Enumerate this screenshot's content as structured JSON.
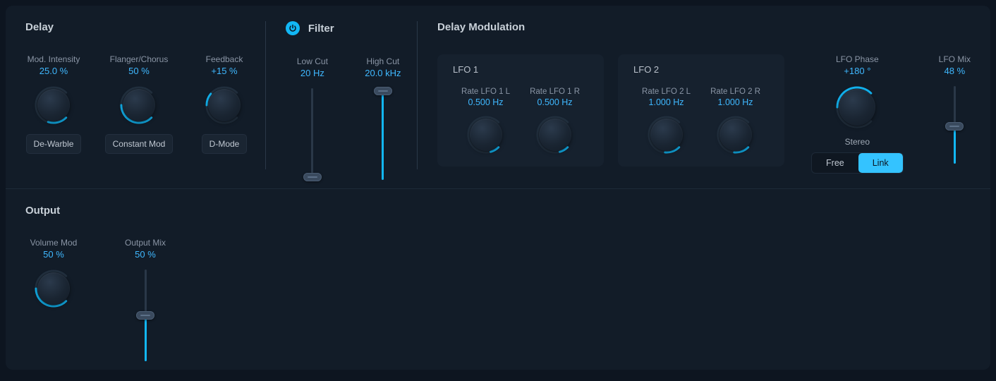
{
  "colors": {
    "bg": "#0d1520",
    "panel": "#121c28",
    "accent": "#3fb8ff",
    "accent_bright": "#12b7f5",
    "text_dim": "#8a95a5",
    "text": "#c8d0d8",
    "track": "#2a3848"
  },
  "delay": {
    "title": "Delay",
    "mod_intensity": {
      "label": "Mod. Intensity",
      "value": "25.0 %",
      "angle": 200,
      "arc_start": 135,
      "arc_end": 198
    },
    "flanger_chorus": {
      "label": "Flanger/Chorus",
      "value": "50 %",
      "angle": 270,
      "arc_start": 135,
      "arc_end": 270
    },
    "feedback": {
      "label": "Feedback",
      "value": "+15 %",
      "angle": 310,
      "arc_start": 270,
      "arc_end": 310
    },
    "buttons": {
      "dewarble": "De-Warble",
      "constant_mod": "Constant Mod",
      "dmode": "D-Mode"
    }
  },
  "filter": {
    "title": "Filter",
    "low_cut": {
      "label": "Low Cut",
      "value": "20 Hz",
      "pos_pct": 97
    },
    "high_cut": {
      "label": "High Cut",
      "value": "20.0 kHz",
      "pos_pct": 3
    }
  },
  "delay_mod": {
    "title": "Delay Modulation",
    "lfo1": {
      "title": "LFO 1",
      "rate_l": {
        "label": "Rate LFO 1 L",
        "value": "0.500 Hz",
        "angle": 165,
        "arc_start": 135,
        "arc_end": 165
      },
      "rate_r": {
        "label": "Rate LFO 1 R",
        "value": "0.500 Hz",
        "angle": 165,
        "arc_start": 135,
        "arc_end": 165
      }
    },
    "lfo2": {
      "title": "LFO 2",
      "rate_l": {
        "label": "Rate LFO 2 L",
        "value": "1.000 Hz",
        "angle": 185,
        "arc_start": 135,
        "arc_end": 185
      },
      "rate_r": {
        "label": "Rate LFO 2 R",
        "value": "1.000 Hz",
        "angle": 185,
        "arc_start": 135,
        "arc_end": 185
      }
    },
    "lfo_phase": {
      "label": "LFO Phase",
      "value": "+180 °",
      "angle": 45,
      "arc_start": 270,
      "arc_end": 405
    },
    "stereo": {
      "label": "Stereo",
      "free": "Free",
      "link": "Link",
      "active": "link"
    },
    "lfo_mix": {
      "label": "LFO Mix",
      "value": "48 %",
      "pos_pct": 52
    }
  },
  "output": {
    "title": "Output",
    "volume_mod": {
      "label": "Volume Mod",
      "value": "50 %",
      "angle": 270,
      "arc_start": 135,
      "arc_end": 270
    },
    "output_mix": {
      "label": "Output Mix",
      "value": "50 %",
      "pos_pct": 50
    }
  }
}
